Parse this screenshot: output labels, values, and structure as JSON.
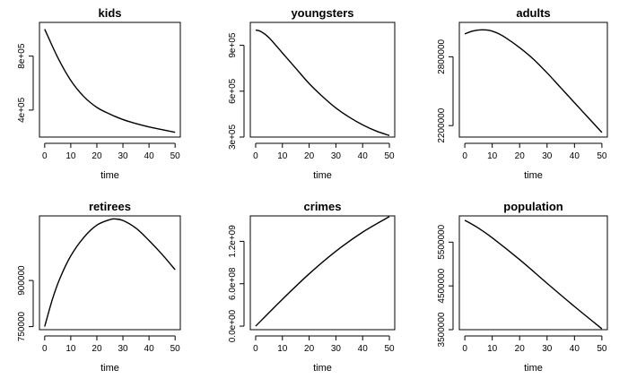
{
  "chart_data": [
    {
      "type": "line",
      "title": "kids",
      "xlabel": "time",
      "ylabel": "",
      "xlim": [
        -2,
        52
      ],
      "ylim": [
        200000,
        1050000
      ],
      "xticks": [
        0,
        10,
        20,
        30,
        40,
        50
      ],
      "xtick_labels": [
        "0",
        "10",
        "20",
        "30",
        "40",
        "50"
      ],
      "yticks": [
        400000,
        800000
      ],
      "ytick_labels": [
        "4e+05",
        "8e+05"
      ],
      "x": [
        0,
        5,
        10,
        15,
        20,
        25,
        30,
        35,
        40,
        45,
        50
      ],
      "y": [
        1000000,
        790000,
        620000,
        500000,
        420000,
        370000,
        330000,
        300000,
        275000,
        255000,
        235000
      ]
    },
    {
      "type": "line",
      "title": "youngsters",
      "xlabel": "time",
      "ylabel": "",
      "xlim": [
        -2,
        52
      ],
      "ylim": [
        300000,
        1050000
      ],
      "xticks": [
        0,
        10,
        20,
        30,
        40,
        50
      ],
      "xtick_labels": [
        "0",
        "10",
        "20",
        "30",
        "40",
        "50"
      ],
      "yticks": [
        300000,
        600000,
        900000
      ],
      "ytick_labels": [
        "3e+05",
        "6e+05",
        "9e+05"
      ],
      "x": [
        0,
        2,
        5,
        10,
        15,
        20,
        25,
        30,
        35,
        40,
        45,
        50
      ],
      "y": [
        1000000,
        990000,
        950000,
        850000,
        750000,
        650000,
        565000,
        490000,
        430000,
        380000,
        340000,
        310000
      ]
    },
    {
      "type": "line",
      "title": "adults",
      "xlabel": "time",
      "ylabel": "",
      "xlim": [
        -2,
        52
      ],
      "ylim": [
        2100000,
        3100000
      ],
      "xticks": [
        0,
        10,
        20,
        30,
        40,
        50
      ],
      "xtick_labels": [
        "0",
        "10",
        "20",
        "30",
        "40",
        "50"
      ],
      "yticks": [
        2200000,
        2800000
      ],
      "ytick_labels": [
        "2200000",
        "2800000"
      ],
      "x": [
        0,
        3,
        6,
        9,
        12,
        15,
        20,
        25,
        30,
        35,
        40,
        45,
        50
      ],
      "y": [
        3000000,
        3025000,
        3035000,
        3030000,
        3005000,
        2965000,
        2880000,
        2780000,
        2660000,
        2530000,
        2400000,
        2270000,
        2140000
      ]
    },
    {
      "type": "line",
      "title": "retirees",
      "xlabel": "time",
      "ylabel": "",
      "xlim": [
        -2,
        52
      ],
      "ylim": [
        740000,
        1110000
      ],
      "xticks": [
        0,
        10,
        20,
        30,
        40,
        50
      ],
      "xtick_labels": [
        "0",
        "10",
        "20",
        "30",
        "40",
        "50"
      ],
      "yticks": [
        750000,
        900000
      ],
      "ytick_labels": [
        "750000",
        "900000"
      ],
      "x": [
        0,
        3,
        6,
        10,
        15,
        20,
        25,
        27,
        30,
        35,
        40,
        45,
        50
      ],
      "y": [
        750000,
        840000,
        910000,
        980000,
        1040000,
        1080000,
        1098000,
        1100000,
        1095000,
        1070000,
        1030000,
        985000,
        935000
      ]
    },
    {
      "type": "line",
      "title": "crimes",
      "xlabel": "time",
      "ylabel": "",
      "xlim": [
        -2,
        52
      ],
      "ylim": [
        -50000000,
        1560000000
      ],
      "xticks": [
        0,
        10,
        20,
        30,
        40,
        50
      ],
      "xtick_labels": [
        "0",
        "10",
        "20",
        "30",
        "40",
        "50"
      ],
      "yticks": [
        0,
        600000000,
        1200000000
      ],
      "ytick_labels": [
        "0.0e+00",
        "6.0e+08",
        "1.2e+09"
      ],
      "x": [
        0,
        10,
        20,
        30,
        40,
        50
      ],
      "y": [
        0,
        380000000,
        740000000,
        1060000000,
        1330000000,
        1550000000
      ]
    },
    {
      "type": "line",
      "title": "population",
      "xlabel": "time",
      "ylabel": "",
      "xlim": [
        -2,
        52
      ],
      "ylim": [
        3500000,
        6100000
      ],
      "xticks": [
        0,
        10,
        20,
        30,
        40,
        50
      ],
      "xtick_labels": [
        "0",
        "10",
        "20",
        "30",
        "40",
        "50"
      ],
      "yticks": [
        3500000,
        4500000,
        5500000
      ],
      "ytick_labels": [
        "3500000",
        "4500000",
        "5500000"
      ],
      "x": [
        0,
        5,
        10,
        20,
        30,
        40,
        50
      ],
      "y": [
        6000000,
        5820000,
        5600000,
        5100000,
        4560000,
        4030000,
        3520000
      ]
    }
  ]
}
